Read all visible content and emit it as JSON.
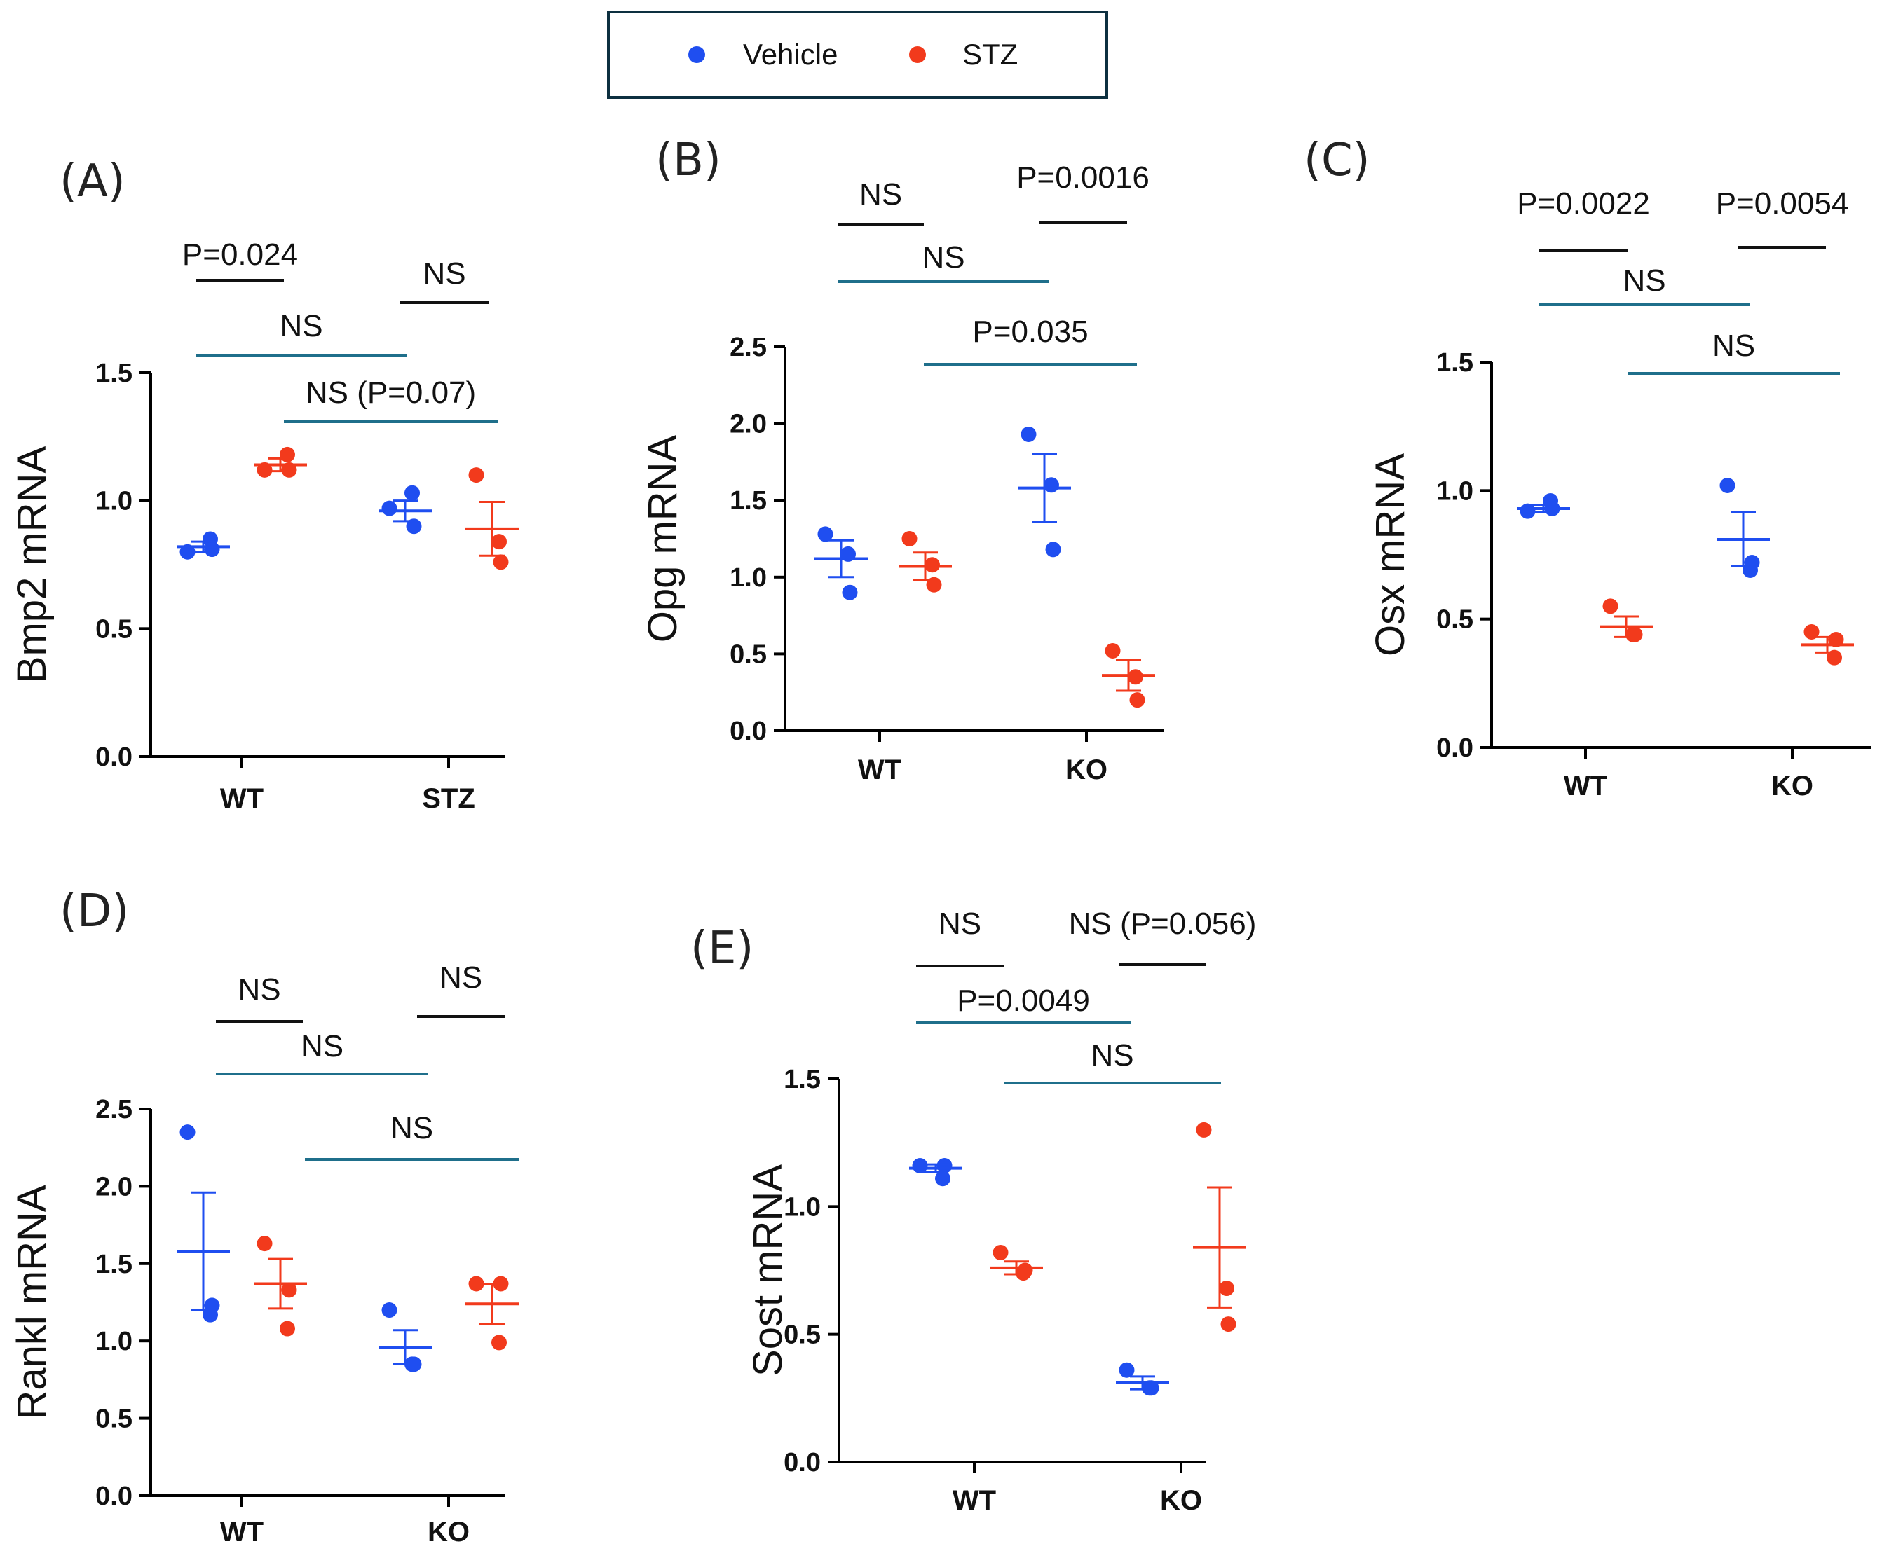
{
  "legend": {
    "items": [
      {
        "label": "Vehicle",
        "color": "#1f4ef0"
      },
      {
        "label": "STZ",
        "color": "#f23a1c"
      }
    ]
  },
  "chart_data": [
    {
      "panel": "(A)",
      "type": "scatter",
      "ylabel": "Bmp2 mRNA",
      "ylim": [
        0,
        1.5
      ],
      "yticks": [
        "0.0",
        "0.5",
        "1.0",
        "1.5"
      ],
      "categories": [
        "WT",
        "STZ"
      ],
      "series": [
        {
          "name": "Vehicle",
          "points": [
            [
              0.8,
              0.85,
              0.81
            ],
            [
              0.97,
              1.03,
              0.9
            ]
          ],
          "mean": [
            0.82,
            0.96
          ],
          "sem": [
            0.02,
            0.04
          ]
        },
        {
          "name": "STZ",
          "points": [
            [
              1.12,
              1.18,
              1.12
            ],
            [
              1.1,
              0.84,
              0.76
            ]
          ],
          "mean": [
            1.14,
            0.89
          ],
          "sem": [
            0.025,
            0.105
          ]
        }
      ],
      "annotations": [
        {
          "label": "P=0.024",
          "type": "within",
          "group": 0
        },
        {
          "label": "NS",
          "type": "within",
          "group": 1
        },
        {
          "label": "NS",
          "type": "across",
          "series": 0
        },
        {
          "label": "NS (P=0.07)",
          "type": "across",
          "series": 1
        }
      ]
    },
    {
      "panel": "(B)",
      "type": "scatter",
      "ylabel": "Opg mRNA",
      "ylim": [
        0,
        2.5
      ],
      "yticks": [
        "0.0",
        "0.5",
        "1.0",
        "1.5",
        "2.0",
        "2.5"
      ],
      "categories": [
        "WT",
        "KO"
      ],
      "series": [
        {
          "name": "Vehicle",
          "points": [
            [
              1.28,
              1.15,
              0.9
            ],
            [
              1.93,
              1.6,
              1.18
            ]
          ],
          "mean": [
            1.12,
            1.58
          ],
          "sem": [
            0.12,
            0.22
          ]
        },
        {
          "name": "STZ",
          "points": [
            [
              1.25,
              1.08,
              0.95
            ],
            [
              0.52,
              0.35,
              0.2
            ]
          ],
          "mean": [
            1.07,
            0.36
          ],
          "sem": [
            0.09,
            0.1
          ]
        }
      ],
      "annotations": [
        {
          "label": "NS",
          "type": "within",
          "group": 0
        },
        {
          "label": "P=0.0016",
          "type": "within",
          "group": 1
        },
        {
          "label": "NS",
          "type": "across",
          "series": 0
        },
        {
          "label": "P=0.035",
          "type": "across",
          "series": 1
        }
      ]
    },
    {
      "panel": "(C)",
      "type": "scatter",
      "ylabel": "Osx mRNA",
      "ylim": [
        0,
        1.5
      ],
      "yticks": [
        "0.0",
        "0.5",
        "1.0",
        "1.5"
      ],
      "categories": [
        "WT",
        "KO"
      ],
      "series": [
        {
          "name": "Vehicle",
          "points": [
            [
              0.92,
              0.96,
              0.93
            ],
            [
              1.02,
              0.69,
              0.72
            ]
          ],
          "mean": [
            0.93,
            0.81
          ],
          "sem": [
            0.015,
            0.105
          ]
        },
        {
          "name": "STZ",
          "points": [
            [
              0.55,
              0.44,
              0.44
            ],
            [
              0.45,
              0.35,
              0.42
            ]
          ],
          "mean": [
            0.47,
            0.4
          ],
          "sem": [
            0.04,
            0.03
          ]
        }
      ],
      "annotations": [
        {
          "label": "P=0.0022",
          "type": "within",
          "group": 0
        },
        {
          "label": "P=0.0054",
          "type": "within",
          "group": 1
        },
        {
          "label": "NS",
          "type": "across",
          "series": 0
        },
        {
          "label": "NS",
          "type": "across",
          "series": 1
        }
      ]
    },
    {
      "panel": "(D)",
      "type": "scatter",
      "ylabel": "Rankl mRNA",
      "ylim": [
        0,
        2.5
      ],
      "yticks": [
        "0.0",
        "0.5",
        "1.0",
        "1.5",
        "2.0",
        "2.5"
      ],
      "categories": [
        "WT",
        "KO"
      ],
      "series": [
        {
          "name": "Vehicle",
          "points": [
            [
              2.35,
              1.17,
              1.23
            ],
            [
              1.2,
              0.85,
              0.85
            ]
          ],
          "mean": [
            1.58,
            0.96
          ],
          "sem": [
            0.38,
            0.11
          ]
        },
        {
          "name": "STZ",
          "points": [
            [
              1.63,
              1.08,
              1.33
            ],
            [
              1.37,
              0.99,
              1.37
            ]
          ],
          "mean": [
            1.37,
            1.24
          ],
          "sem": [
            0.16,
            0.13
          ]
        }
      ],
      "annotations": [
        {
          "label": "NS",
          "type": "within",
          "group": 0
        },
        {
          "label": "NS",
          "type": "within",
          "group": 1
        },
        {
          "label": "NS",
          "type": "across",
          "series": 0
        },
        {
          "label": "NS",
          "type": "across",
          "series": 1
        }
      ]
    },
    {
      "panel": "(E)",
      "type": "scatter",
      "ylabel": "Sost mRNA",
      "ylim": [
        0,
        1.5
      ],
      "yticks": [
        "0.0",
        "0.5",
        "1.0",
        "1.5"
      ],
      "categories": [
        "WT",
        "KO"
      ],
      "series": [
        {
          "name": "Vehicle",
          "points": [
            [
              1.16,
              1.11,
              1.16
            ],
            [
              0.36,
              0.29,
              0.29
            ]
          ],
          "mean": [
            1.15,
            0.31
          ],
          "sem": [
            0.015,
            0.025
          ]
        },
        {
          "name": "STZ",
          "points": [
            [
              0.82,
              0.74,
              0.75
            ],
            [
              1.3,
              0.68,
              0.54
            ]
          ],
          "mean": [
            0.76,
            0.84
          ],
          "sem": [
            0.025,
            0.235
          ]
        }
      ],
      "annotations": [
        {
          "label": "NS",
          "type": "within",
          "group": 0
        },
        {
          "label": "NS (P=0.056)",
          "type": "within",
          "group": 1
        },
        {
          "label": "P=0.0049",
          "type": "across",
          "series": 0
        },
        {
          "label": "NS",
          "type": "across",
          "series": 1
        }
      ]
    }
  ]
}
